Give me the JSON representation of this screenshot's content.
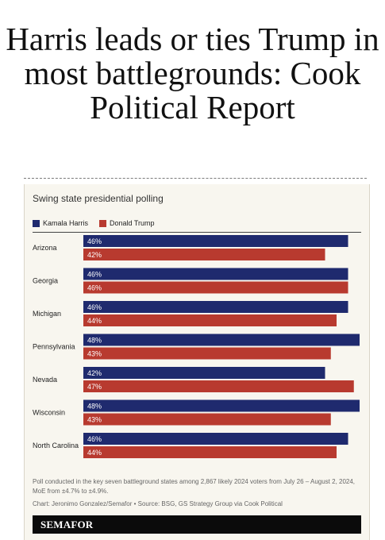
{
  "headline": "Harris leads or ties Trump in most battlegrounds: Cook Political Report",
  "chart_data": {
    "type": "bar",
    "orientation": "horizontal",
    "title": "Swing state presidential polling",
    "categories": [
      "Arizona",
      "Georgia",
      "Michigan",
      "Pennsylvania",
      "Nevada",
      "Wisconsin",
      "North Carolina"
    ],
    "series": [
      {
        "name": "Kamala Harris",
        "color": "#1f2a6e",
        "values": [
          46,
          46,
          46,
          48,
          42,
          48,
          46
        ]
      },
      {
        "name": "Donald Trump",
        "color": "#b83a2f",
        "values": [
          42,
          46,
          44,
          43,
          47,
          43,
          44
        ]
      }
    ],
    "value_suffix": "%",
    "xlim": [
      0,
      48
    ],
    "grid": false,
    "legend_position": "top-left"
  },
  "footnote": "Poll conducted in the key seven battleground states among 2,867 likely 2024 voters from July 26 – August 2, 2024, MoE from ±4.7% to ±4.9%.",
  "credit": "Chart: Jeronimo Gonzalez/Semafor • Source: BSG, GS Strategy Group via Cook Political",
  "brand": "SEMAFOR"
}
